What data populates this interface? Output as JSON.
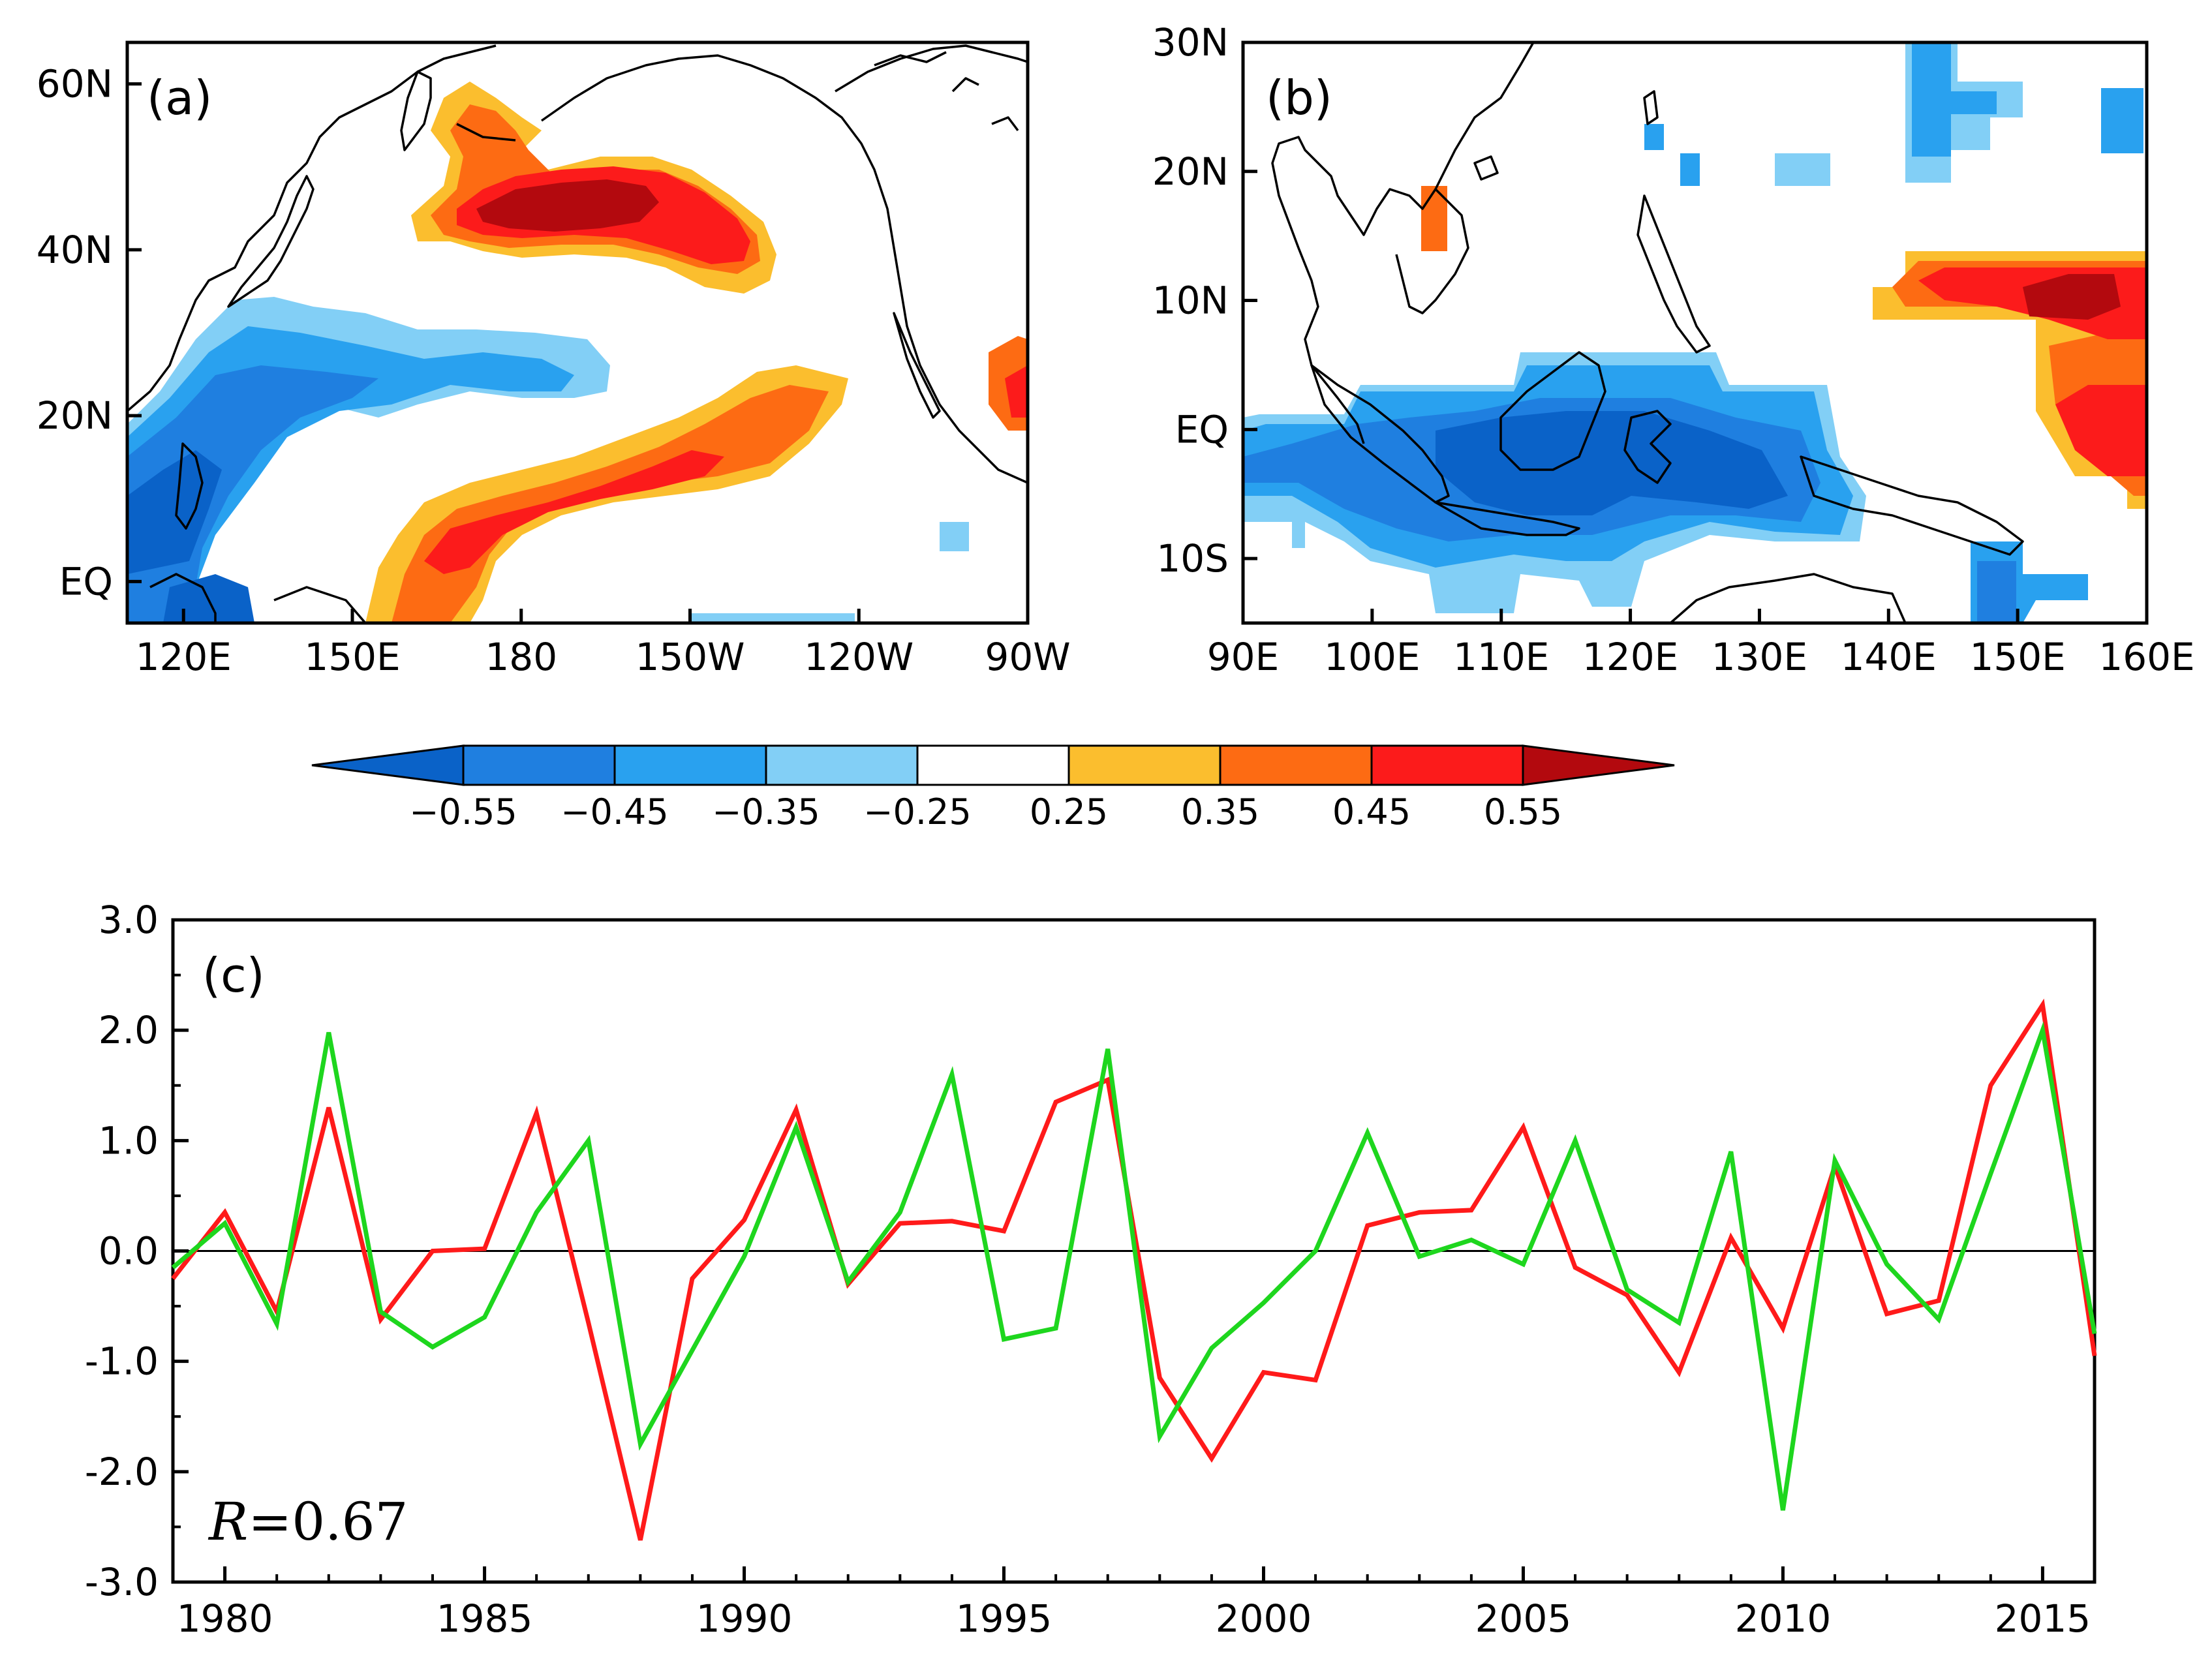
{
  "chart_data": [
    {
      "type": "heatmap",
      "panel_label": "(a)",
      "x_ticks": [
        "120E",
        "150E",
        "180",
        "150W",
        "120W",
        "90W"
      ],
      "y_ticks": [
        "60N",
        "40N",
        "20N",
        "EQ"
      ],
      "xlim": [
        110,
        270
      ],
      "ylim": [
        -5,
        65
      ],
      "regions": [
        {
          "level": 0.55,
          "lon": [
            180,
            205
          ],
          "lat": [
            38,
            48
          ]
        },
        {
          "level": 0.45,
          "lon": [
            170,
            235
          ],
          "lat": [
            35,
            50
          ]
        },
        {
          "level": 0.45,
          "lon": [
            170,
            215
          ],
          "lat": [
            5,
            15
          ]
        },
        {
          "level": -0.45,
          "lon": [
            120,
            175
          ],
          "lat": [
            15,
            30
          ]
        },
        {
          "level": -0.35,
          "lon": [
            110,
            190
          ],
          "lat": [
            -5,
            35
          ]
        }
      ]
    },
    {
      "type": "heatmap",
      "panel_label": "(b)",
      "x_ticks": [
        "90E",
        "100E",
        "110E",
        "120E",
        "130E",
        "140E",
        "150E",
        "160E"
      ],
      "y_ticks": [
        "30N",
        "20N",
        "10N",
        "EQ",
        "10S"
      ],
      "xlim": [
        90,
        160
      ],
      "ylim": [
        -15,
        30
      ],
      "regions": [
        {
          "level": -0.55,
          "lon": [
            110,
            135
          ],
          "lat": [
            -8,
            2
          ]
        },
        {
          "level": -0.45,
          "lon": [
            90,
            140
          ],
          "lat": [
            -12,
            6
          ]
        },
        {
          "level": 0.55,
          "lon": [
            148,
            158
          ],
          "lat": [
            8,
            12
          ]
        },
        {
          "level": 0.45,
          "lon": [
            142,
            160
          ],
          "lat": [
            -5,
            14
          ]
        }
      ]
    },
    {
      "type": "line",
      "panel_label": "(c)",
      "annotation": "R=0.67",
      "annotation_var": "R",
      "annotation_rest": "=0.67",
      "xlim": [
        1979,
        2016
      ],
      "ylim": [
        -3.0,
        3.0
      ],
      "x_ticks": [
        "1980",
        "1985",
        "1990",
        "1995",
        "2000",
        "2005",
        "2010",
        "2015"
      ],
      "y_ticks": [
        "3.0",
        "2.0",
        "1.0",
        "0.0",
        "-1.0",
        "-2.0",
        "-3.0"
      ],
      "x": [
        1979,
        1980,
        1981,
        1982,
        1983,
        1984,
        1985,
        1986,
        1987,
        1988,
        1989,
        1990,
        1991,
        1992,
        1993,
        1994,
        1995,
        1996,
        1997,
        1998,
        1999,
        2000,
        2001,
        2002,
        2003,
        2004,
        2005,
        2006,
        2007,
        2008,
        2009,
        2010,
        2011,
        2012,
        2013,
        2014,
        2015,
        2016
      ],
      "series": [
        {
          "color": "#ff1a1a",
          "values": [
            -0.25,
            0.35,
            -0.55,
            1.3,
            -0.62,
            0.0,
            0.02,
            1.25,
            -0.65,
            -2.62,
            -0.25,
            0.28,
            1.28,
            -0.3,
            0.25,
            0.27,
            0.18,
            1.35,
            1.55,
            -1.15,
            -1.88,
            -1.1,
            -1.17,
            0.23,
            0.35,
            0.37,
            1.12,
            -0.15,
            -0.4,
            -1.1,
            0.12,
            -0.7,
            0.77,
            -0.57,
            -0.45,
            1.5,
            2.23,
            -0.95
          ]
        },
        {
          "color": "#1ed61e",
          "values": [
            -0.15,
            0.25,
            -0.66,
            1.98,
            -0.55,
            -0.87,
            -0.6,
            0.35,
            1.0,
            -1.75,
            -0.9,
            -0.05,
            1.12,
            -0.28,
            0.35,
            1.6,
            -0.8,
            -0.7,
            1.83,
            -1.68,
            -0.88,
            -0.47,
            0.0,
            1.07,
            -0.05,
            0.1,
            -0.12,
            1.0,
            -0.35,
            -0.65,
            0.9,
            -2.35,
            0.82,
            -0.12,
            -0.62,
            0.7,
            2.0,
            -0.75
          ]
        }
      ]
    }
  ],
  "colorbar": {
    "tick_labels": [
      "−0.55",
      "−0.45",
      "−0.35",
      "−0.25",
      "0.25",
      "0.35",
      "0.45",
      "0.55"
    ],
    "colors": [
      "#0a62c8",
      "#1f7fe0",
      "#29a1ef",
      "#82cff6",
      "#ffffff",
      "#fbbe2e",
      "#fd6b13",
      "#fc1b1b",
      "#b3090e"
    ]
  }
}
